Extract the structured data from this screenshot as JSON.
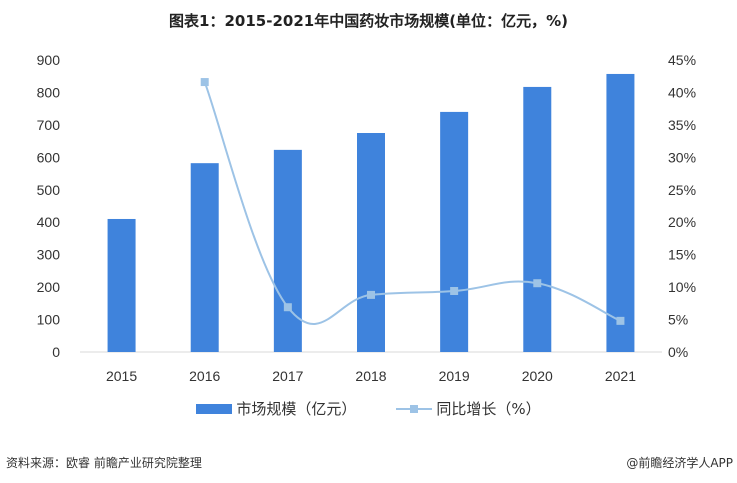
{
  "chart_data": {
    "type": "bar+line",
    "title": "图表1：2015-2021年中国药妆市场规模(单位：亿元，%)",
    "categories": [
      "2015",
      "2016",
      "2017",
      "2018",
      "2019",
      "2020",
      "2021"
    ],
    "series": [
      {
        "name": "市场规模（亿元）",
        "type": "bar",
        "axis": "left",
        "color": "#3f83dc",
        "values": [
          410,
          582,
          623,
          675,
          740,
          817,
          857
        ]
      },
      {
        "name": "同比增长（%）",
        "type": "line",
        "axis": "right",
        "color": "#9dc3e6",
        "values": [
          null,
          41.6,
          6.9,
          8.8,
          9.4,
          10.6,
          4.8
        ]
      }
    ],
    "ylim": [
      0,
      900
    ],
    "yticks": [
      0,
      100,
      200,
      300,
      400,
      500,
      600,
      700,
      800,
      900
    ],
    "y2lim": [
      0,
      45
    ],
    "y2ticks": [
      "0%",
      "5%",
      "10%",
      "15%",
      "20%",
      "25%",
      "30%",
      "35%",
      "40%",
      "45%"
    ],
    "grid": false,
    "legend": "bottom"
  },
  "footer": {
    "source": "资料来源：欧睿 前瞻产业研究院整理",
    "credit": "@前瞻经济学人APP"
  }
}
